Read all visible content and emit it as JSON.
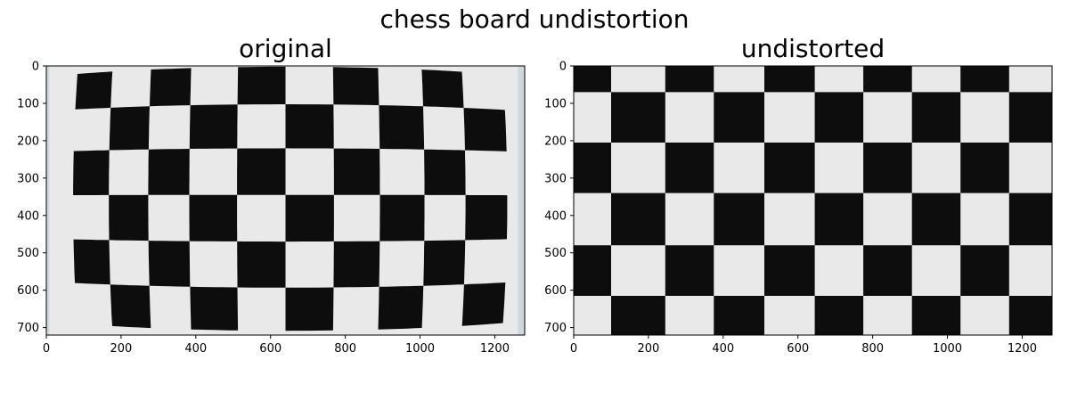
{
  "figure": {
    "title": "chess board undistortion"
  },
  "chart_data": [
    {
      "type": "image",
      "title": "original",
      "xlim": [
        0,
        1280
      ],
      "ylim": [
        720,
        0
      ],
      "xticks": [
        0,
        200,
        400,
        600,
        800,
        1000,
        1200
      ],
      "yticks": [
        0,
        100,
        200,
        300,
        400,
        500,
        600,
        700
      ],
      "xtick_labels": [
        "0",
        "200",
        "400",
        "600",
        "800",
        "1000",
        "1200"
      ],
      "ytick_labels": [
        "0",
        "100",
        "200",
        "300",
        "400",
        "500",
        "600",
        "700"
      ],
      "content": "photo of a checkerboard pattern showing barrel lens distortion",
      "board_rows": 7,
      "board_cols": 10
    },
    {
      "type": "image",
      "title": "undistorted",
      "xlim": [
        0,
        1280
      ],
      "ylim": [
        720,
        0
      ],
      "xticks": [
        0,
        200,
        400,
        600,
        800,
        1000,
        1200
      ],
      "yticks": [
        0,
        100,
        200,
        300,
        400,
        500,
        600,
        700
      ],
      "xtick_labels": [
        "0",
        "200",
        "400",
        "600",
        "800",
        "1000",
        "1200"
      ],
      "ytick_labels": [
        "0",
        "100",
        "200",
        "300",
        "400",
        "500",
        "600",
        "700"
      ],
      "content": "same checkerboard after lens distortion correction",
      "board_rows": 7,
      "board_cols": 10
    }
  ]
}
